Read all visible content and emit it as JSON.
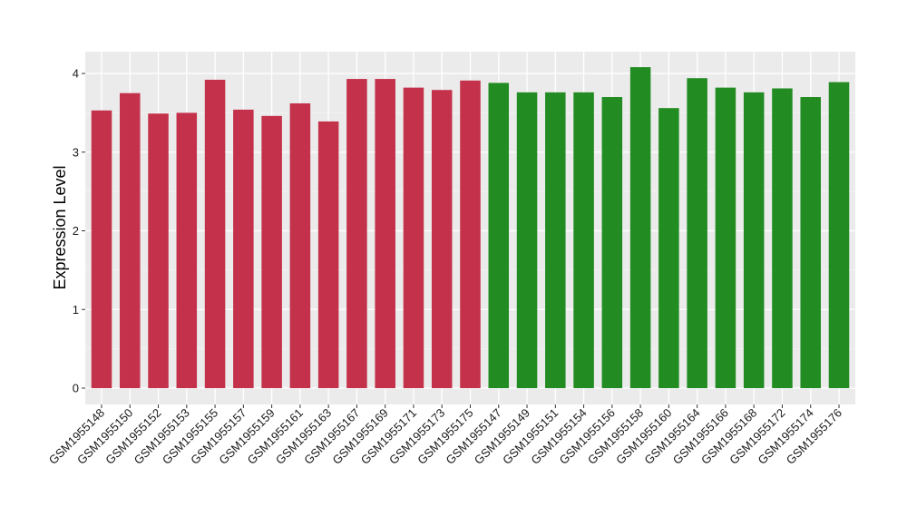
{
  "chart_data": {
    "type": "bar",
    "title": "",
    "xlabel": "",
    "ylabel": "Expression Level",
    "ylim": [
      0,
      4.2
    ],
    "yticks": [
      0,
      1,
      2,
      3,
      4
    ],
    "grid": true,
    "legend": "none",
    "panel_background": "#ebebeb",
    "categories": [
      "GSM1955148",
      "GSM1955150",
      "GSM1955152",
      "GSM1955153",
      "GSM1955155",
      "GSM1955157",
      "GSM1955159",
      "GSM1955161",
      "GSM1955163",
      "GSM1955167",
      "GSM1955169",
      "GSM1955171",
      "GSM1955173",
      "GSM1955175",
      "GSM1955147",
      "GSM1955149",
      "GSM1955151",
      "GSM1955154",
      "GSM1955156",
      "GSM1955158",
      "GSM1955160",
      "GSM1955164",
      "GSM1955166",
      "GSM1955168",
      "GSM1955172",
      "GSM1955174",
      "GSM1955176"
    ],
    "values": [
      3.53,
      3.75,
      3.49,
      3.5,
      3.92,
      3.54,
      3.46,
      3.62,
      3.39,
      3.93,
      3.93,
      3.82,
      3.79,
      3.91,
      3.88,
      3.76,
      3.76,
      3.76,
      3.7,
      4.08,
      3.56,
      3.94,
      3.82,
      3.76,
      3.81,
      3.7,
      3.89
    ],
    "colors": [
      "#c4314b",
      "#c4314b",
      "#c4314b",
      "#c4314b",
      "#c4314b",
      "#c4314b",
      "#c4314b",
      "#c4314b",
      "#c4314b",
      "#c4314b",
      "#c4314b",
      "#c4314b",
      "#c4314b",
      "#c4314b",
      "#228b22",
      "#228b22",
      "#228b22",
      "#228b22",
      "#228b22",
      "#228b22",
      "#228b22",
      "#228b22",
      "#228b22",
      "#228b22",
      "#228b22",
      "#228b22",
      "#228b22"
    ]
  }
}
